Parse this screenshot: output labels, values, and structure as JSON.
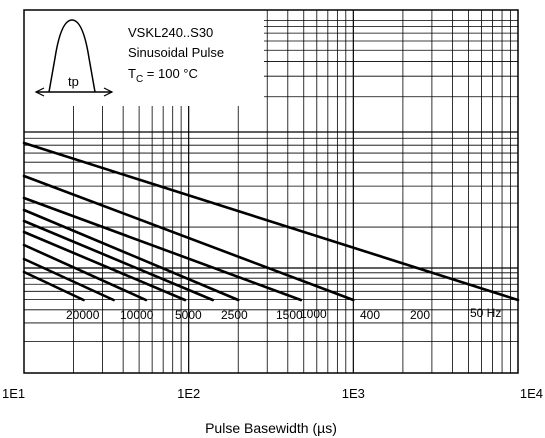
{
  "chart_data": {
    "type": "line",
    "x_scale": "log",
    "xlim": [
      10,
      10000
    ],
    "xticks": [
      "1E1",
      "1E2",
      "1E3",
      "1E4"
    ],
    "xlabel": "Pulse Basewidth (µs)",
    "ylabel": "",
    "grid": true,
    "annotation": {
      "line1": "VSKL240..S30",
      "line2": "Sinusoidal Pulse",
      "tc_prefix": "T",
      "tc_sub": "C",
      "tc_rest": " = 100 °C",
      "pulse_label": "tp"
    },
    "series": [
      {
        "name": "20000",
        "x": [
          10,
          23
        ]
      },
      {
        "name": "10000",
        "x": [
          10,
          35
        ]
      },
      {
        "name": "5000",
        "x": [
          10,
          55
        ]
      },
      {
        "name": "2500",
        "x": [
          10,
          95
        ]
      },
      {
        "name": "1500",
        "x": [
          10,
          140
        ]
      },
      {
        "name": "1000",
        "x": [
          10,
          200
        ]
      },
      {
        "name": "400",
        "x": [
          10,
          480
        ]
      },
      {
        "name": "200",
        "x": [
          10,
          1000
        ]
      },
      {
        "name": "50 Hz",
        "x": [
          10,
          10000
        ]
      }
    ]
  }
}
